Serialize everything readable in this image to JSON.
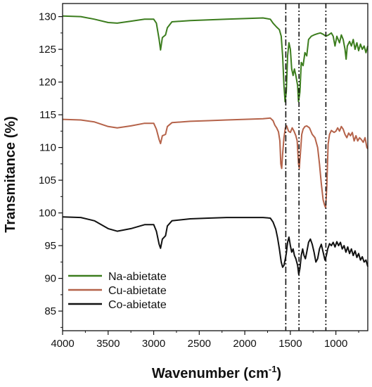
{
  "chart_data": {
    "type": "line",
    "xlabel": "Wavenumber (cm",
    "xlabel_sup": "-1",
    "xlabel_close": ")",
    "ylabel": "Transmitance (%)",
    "xlim": [
      4000,
      650
    ],
    "ylim": [
      82,
      132
    ],
    "x_reversed": true,
    "x_ticks": [
      4000,
      3500,
      3000,
      2500,
      2000,
      1500,
      1000
    ],
    "y_ticks": [
      85,
      90,
      95,
      100,
      105,
      110,
      115,
      120,
      125,
      130
    ],
    "grid": false,
    "legend_position": "bottom-left",
    "reference_lines": [
      {
        "x": 1550,
        "style": "dash-dot"
      },
      {
        "x": 1405,
        "style": "dash-dot-dot"
      },
      {
        "x": 1110,
        "style": "dash-dot-dot"
      }
    ],
    "series": [
      {
        "name": "Na-abietate",
        "color": "#3c7d1e",
        "points": [
          [
            4000,
            130.1
          ],
          [
            3800,
            130.0
          ],
          [
            3650,
            129.6
          ],
          [
            3500,
            129.1
          ],
          [
            3400,
            129.0
          ],
          [
            3250,
            129.3
          ],
          [
            3100,
            129.6
          ],
          [
            3000,
            129.6
          ],
          [
            2970,
            129.0
          ],
          [
            2940,
            126.5
          ],
          [
            2925,
            124.9
          ],
          [
            2905,
            126.8
          ],
          [
            2870,
            127.2
          ],
          [
            2850,
            128.3
          ],
          [
            2800,
            129.2
          ],
          [
            2600,
            129.4
          ],
          [
            2400,
            129.5
          ],
          [
            2200,
            129.6
          ],
          [
            2000,
            129.7
          ],
          [
            1800,
            129.8
          ],
          [
            1720,
            129.6
          ],
          [
            1690,
            129.0
          ],
          [
            1650,
            128.4
          ],
          [
            1620,
            128.0
          ],
          [
            1600,
            127.0
          ],
          [
            1585,
            124.0
          ],
          [
            1570,
            119.5
          ],
          [
            1558,
            117.0
          ],
          [
            1545,
            118.5
          ],
          [
            1530,
            124.0
          ],
          [
            1515,
            126.0
          ],
          [
            1500,
            125.0
          ],
          [
            1485,
            122.0
          ],
          [
            1470,
            121.0
          ],
          [
            1455,
            122.0
          ],
          [
            1440,
            121.0
          ],
          [
            1420,
            119.5
          ],
          [
            1410,
            117.0
          ],
          [
            1395,
            118.5
          ],
          [
            1380,
            123.0
          ],
          [
            1360,
            122.5
          ],
          [
            1340,
            124.5
          ],
          [
            1320,
            124.0
          ],
          [
            1300,
            126.5
          ],
          [
            1270,
            127.0
          ],
          [
            1240,
            127.2
          ],
          [
            1200,
            127.4
          ],
          [
            1170,
            127.5
          ],
          [
            1140,
            127.3
          ],
          [
            1110,
            127.0
          ],
          [
            1080,
            127.2
          ],
          [
            1050,
            127.5
          ],
          [
            1030,
            127.0
          ],
          [
            1010,
            125.5
          ],
          [
            990,
            127.0
          ],
          [
            960,
            126.0
          ],
          [
            940,
            127.2
          ],
          [
            920,
            126.5
          ],
          [
            900,
            125.0
          ],
          [
            888,
            123.5
          ],
          [
            875,
            125.5
          ],
          [
            850,
            126.2
          ],
          [
            830,
            125.5
          ],
          [
            810,
            126.5
          ],
          [
            790,
            125.0
          ],
          [
            770,
            126.0
          ],
          [
            750,
            124.8
          ],
          [
            730,
            125.8
          ],
          [
            710,
            125.0
          ],
          [
            690,
            125.5
          ],
          [
            670,
            124.5
          ],
          [
            650,
            125.5
          ]
        ]
      },
      {
        "name": "Cu-abietate",
        "color": "#b5634a",
        "points": [
          [
            4000,
            114.3
          ],
          [
            3800,
            114.2
          ],
          [
            3650,
            113.9
          ],
          [
            3500,
            113.2
          ],
          [
            3400,
            113.0
          ],
          [
            3250,
            113.3
          ],
          [
            3100,
            113.7
          ],
          [
            3000,
            113.7
          ],
          [
            2970,
            112.8
          ],
          [
            2940,
            111.2
          ],
          [
            2925,
            110.6
          ],
          [
            2905,
            111.8
          ],
          [
            2870,
            112.0
          ],
          [
            2850,
            113.2
          ],
          [
            2800,
            113.8
          ],
          [
            2600,
            114.0
          ],
          [
            2400,
            114.1
          ],
          [
            2200,
            114.2
          ],
          [
            2000,
            114.3
          ],
          [
            1800,
            114.4
          ],
          [
            1720,
            114.5
          ],
          [
            1690,
            114.1
          ],
          [
            1670,
            113.4
          ],
          [
            1650,
            113.0
          ],
          [
            1630,
            112.4
          ],
          [
            1615,
            111.0
          ],
          [
            1605,
            107.5
          ],
          [
            1595,
            106.8
          ],
          [
            1585,
            109.0
          ],
          [
            1570,
            111.5
          ],
          [
            1555,
            113.0
          ],
          [
            1540,
            113.3
          ],
          [
            1520,
            112.5
          ],
          [
            1500,
            112.3
          ],
          [
            1480,
            113.0
          ],
          [
            1460,
            112.5
          ],
          [
            1440,
            111.8
          ],
          [
            1425,
            111.0
          ],
          [
            1410,
            107.5
          ],
          [
            1402,
            106.8
          ],
          [
            1390,
            109.0
          ],
          [
            1375,
            112.0
          ],
          [
            1360,
            112.8
          ],
          [
            1340,
            113.2
          ],
          [
            1320,
            113.3
          ],
          [
            1290,
            113.0
          ],
          [
            1260,
            112.0
          ],
          [
            1230,
            111.5
          ],
          [
            1200,
            110.0
          ],
          [
            1180,
            107.5
          ],
          [
            1160,
            104.5
          ],
          [
            1140,
            102.0
          ],
          [
            1125,
            101.2
          ],
          [
            1112,
            100.8
          ],
          [
            1100,
            104.0
          ],
          [
            1085,
            110.5
          ],
          [
            1070,
            112.0
          ],
          [
            1050,
            112.6
          ],
          [
            1020,
            112.3
          ],
          [
            1000,
            112.5
          ],
          [
            980,
            113.0
          ],
          [
            960,
            112.5
          ],
          [
            940,
            113.2
          ],
          [
            920,
            112.8
          ],
          [
            900,
            112.0
          ],
          [
            880,
            111.5
          ],
          [
            860,
            112.2
          ],
          [
            840,
            111.8
          ],
          [
            820,
            112.3
          ],
          [
            800,
            111.0
          ],
          [
            780,
            111.8
          ],
          [
            760,
            111.0
          ],
          [
            740,
            111.5
          ],
          [
            720,
            111.2
          ],
          [
            700,
            110.8
          ],
          [
            680,
            111.5
          ],
          [
            660,
            110.0
          ],
          [
            650,
            109.8
          ]
        ]
      },
      {
        "name": "Co-abietate",
        "color": "#111111",
        "points": [
          [
            4000,
            99.4
          ],
          [
            3800,
            99.3
          ],
          [
            3650,
            98.8
          ],
          [
            3500,
            97.6
          ],
          [
            3400,
            97.2
          ],
          [
            3250,
            97.6
          ],
          [
            3100,
            98.2
          ],
          [
            3000,
            98.2
          ],
          [
            2970,
            97.2
          ],
          [
            2940,
            95.2
          ],
          [
            2925,
            94.6
          ],
          [
            2905,
            96.0
          ],
          [
            2870,
            96.5
          ],
          [
            2850,
            98.0
          ],
          [
            2800,
            98.8
          ],
          [
            2600,
            99.1
          ],
          [
            2400,
            99.2
          ],
          [
            2200,
            99.3
          ],
          [
            2000,
            99.3
          ],
          [
            1800,
            99.3
          ],
          [
            1720,
            99.2
          ],
          [
            1690,
            98.6
          ],
          [
            1660,
            97.5
          ],
          [
            1640,
            96.2
          ],
          [
            1620,
            94.5
          ],
          [
            1600,
            92.5
          ],
          [
            1585,
            91.7
          ],
          [
            1570,
            92.0
          ],
          [
            1555,
            93.0
          ],
          [
            1545,
            93.8
          ],
          [
            1530,
            95.5
          ],
          [
            1515,
            96.3
          ],
          [
            1500,
            95.0
          ],
          [
            1485,
            94.0
          ],
          [
            1470,
            94.5
          ],
          [
            1455,
            93.5
          ],
          [
            1440,
            93.0
          ],
          [
            1420,
            92.0
          ],
          [
            1408,
            90.6
          ],
          [
            1395,
            91.5
          ],
          [
            1380,
            93.5
          ],
          [
            1365,
            94.5
          ],
          [
            1350,
            93.5
          ],
          [
            1335,
            93.0
          ],
          [
            1320,
            94.0
          ],
          [
            1300,
            95.5
          ],
          [
            1280,
            96.0
          ],
          [
            1260,
            95.2
          ],
          [
            1240,
            94.0
          ],
          [
            1220,
            92.5
          ],
          [
            1200,
            93.0
          ],
          [
            1180,
            94.5
          ],
          [
            1160,
            95.2
          ],
          [
            1140,
            94.0
          ],
          [
            1120,
            92.8
          ],
          [
            1105,
            93.5
          ],
          [
            1090,
            94.5
          ],
          [
            1070,
            95.3
          ],
          [
            1050,
            95.0
          ],
          [
            1030,
            95.5
          ],
          [
            1010,
            94.8
          ],
          [
            990,
            95.6
          ],
          [
            970,
            95.0
          ],
          [
            950,
            95.5
          ],
          [
            930,
            94.5
          ],
          [
            910,
            95.0
          ],
          [
            890,
            94.0
          ],
          [
            870,
            94.8
          ],
          [
            850,
            93.8
          ],
          [
            830,
            94.5
          ],
          [
            810,
            93.5
          ],
          [
            790,
            94.2
          ],
          [
            770,
            93.2
          ],
          [
            750,
            93.8
          ],
          [
            730,
            92.8
          ],
          [
            710,
            93.3
          ],
          [
            690,
            92.5
          ],
          [
            670,
            92.8
          ],
          [
            650,
            91.8
          ]
        ]
      }
    ]
  }
}
